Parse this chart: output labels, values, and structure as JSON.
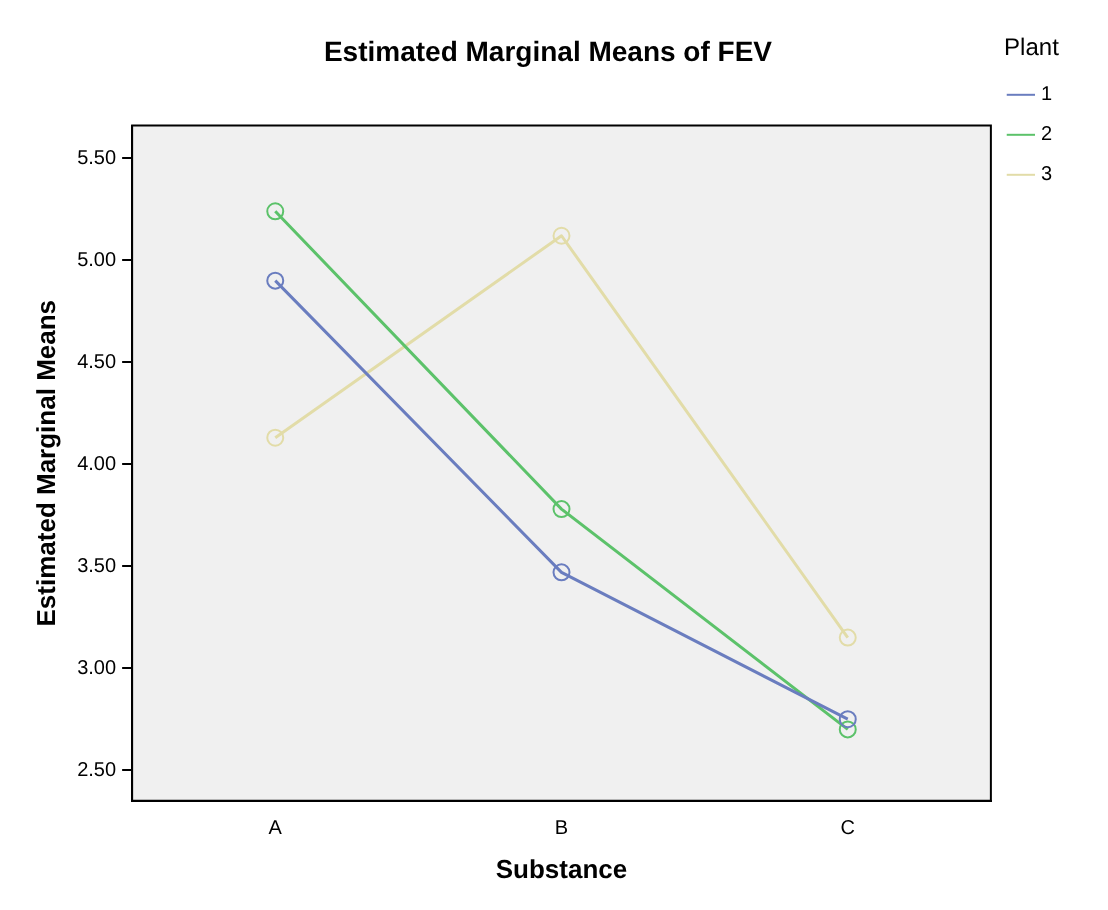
{
  "chart_data": {
    "type": "line",
    "title": "Estimated Marginal Means of FEV",
    "xlabel": "Substance",
    "ylabel": "Estimated Marginal Means",
    "legend_title": "Plant",
    "categories": [
      "A",
      "B",
      "C"
    ],
    "series": [
      {
        "name": "1",
        "color": "#6a7dbf",
        "values": [
          4.9,
          3.47,
          2.75
        ]
      },
      {
        "name": "2",
        "color": "#5cc26a",
        "values": [
          5.24,
          3.78,
          2.7
        ]
      },
      {
        "name": "3",
        "color": "#e2dca8",
        "values": [
          4.13,
          5.12,
          3.15
        ]
      }
    ],
    "ylim": [
      2.35,
      5.66
    ],
    "yticks": [
      {
        "value": 2.5,
        "label": "2.50"
      },
      {
        "value": 3,
        "label": "3.00"
      },
      {
        "value": 3.5,
        "label": "3.50"
      },
      {
        "value": 4,
        "label": "4.00"
      },
      {
        "value": 4.5,
        "label": "4.50"
      },
      {
        "value": 5,
        "label": "5.00"
      },
      {
        "value": 5.5,
        "label": "5.50"
      }
    ],
    "grid": false,
    "legend": "top right",
    "marker": "circle",
    "line_style": "solid"
  }
}
